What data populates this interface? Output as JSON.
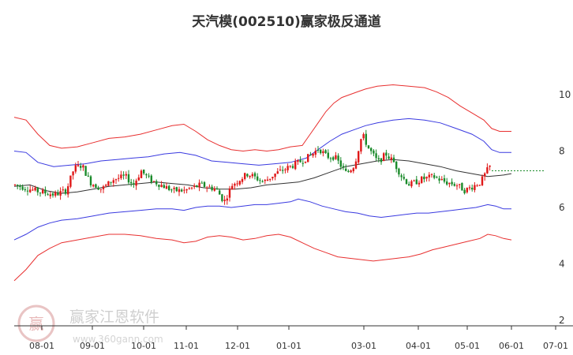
{
  "chart_data": {
    "type": "candlestick-with-channels",
    "title": "天汽模(002510)赢家极反通道",
    "x_ticks": [
      "08-01",
      "09-01",
      "10-01",
      "11-01",
      "12-01",
      "01-01",
      "03-01",
      "04-01",
      "05-01",
      "06-01",
      "07-01"
    ],
    "y_ticks": [
      2,
      4,
      6,
      8,
      10
    ],
    "ylim": [
      2,
      11
    ],
    "last_price": 7.3,
    "grid": false,
    "colors": {
      "up": "#e01818",
      "down": "#1a8a2a",
      "outer_band": "#e83030",
      "inner_band": "#3a3ae0",
      "middle": "#333333",
      "last_price_line": "#1a8a2a"
    },
    "outer_upper": [
      [
        0,
        9.2
      ],
      [
        15,
        9.1
      ],
      [
        30,
        8.6
      ],
      [
        45,
        8.2
      ],
      [
        60,
        8.1
      ],
      [
        80,
        8.15
      ],
      [
        100,
        8.3
      ],
      [
        120,
        8.45
      ],
      [
        140,
        8.5
      ],
      [
        160,
        8.6
      ],
      [
        180,
        8.75
      ],
      [
        200,
        8.9
      ],
      [
        215,
        8.95
      ],
      [
        230,
        8.7
      ],
      [
        245,
        8.4
      ],
      [
        260,
        8.2
      ],
      [
        275,
        8.05
      ],
      [
        290,
        8.0
      ],
      [
        305,
        8.05
      ],
      [
        320,
        8.0
      ],
      [
        335,
        8.05
      ],
      [
        350,
        8.15
      ],
      [
        365,
        8.2
      ],
      [
        375,
        8.6
      ],
      [
        385,
        9.0
      ],
      [
        395,
        9.4
      ],
      [
        405,
        9.7
      ],
      [
        415,
        9.9
      ],
      [
        425,
        10.0
      ],
      [
        435,
        10.1
      ],
      [
        445,
        10.2
      ],
      [
        460,
        10.3
      ],
      [
        480,
        10.35
      ],
      [
        500,
        10.3
      ],
      [
        520,
        10.25
      ],
      [
        535,
        10.1
      ],
      [
        550,
        9.9
      ],
      [
        565,
        9.6
      ],
      [
        580,
        9.35
      ],
      [
        595,
        9.1
      ],
      [
        605,
        8.8
      ],
      [
        615,
        8.7
      ],
      [
        630,
        8.7
      ]
    ],
    "inner_upper": [
      [
        0,
        8.0
      ],
      [
        15,
        7.95
      ],
      [
        30,
        7.6
      ],
      [
        50,
        7.45
      ],
      [
        70,
        7.5
      ],
      [
        90,
        7.55
      ],
      [
        110,
        7.65
      ],
      [
        130,
        7.7
      ],
      [
        150,
        7.75
      ],
      [
        170,
        7.8
      ],
      [
        190,
        7.9
      ],
      [
        210,
        7.95
      ],
      [
        230,
        7.85
      ],
      [
        250,
        7.65
      ],
      [
        270,
        7.6
      ],
      [
        290,
        7.55
      ],
      [
        310,
        7.5
      ],
      [
        330,
        7.55
      ],
      [
        350,
        7.6
      ],
      [
        370,
        7.75
      ],
      [
        385,
        8.05
      ],
      [
        400,
        8.35
      ],
      [
        415,
        8.6
      ],
      [
        430,
        8.75
      ],
      [
        445,
        8.9
      ],
      [
        460,
        9.0
      ],
      [
        480,
        9.1
      ],
      [
        500,
        9.15
      ],
      [
        520,
        9.1
      ],
      [
        540,
        9.0
      ],
      [
        560,
        8.8
      ],
      [
        580,
        8.6
      ],
      [
        595,
        8.35
      ],
      [
        605,
        8.05
      ],
      [
        615,
        7.95
      ],
      [
        630,
        7.95
      ]
    ],
    "middle_line": [
      [
        0,
        6.75
      ],
      [
        20,
        6.8
      ],
      [
        40,
        6.6
      ],
      [
        60,
        6.5
      ],
      [
        80,
        6.55
      ],
      [
        100,
        6.65
      ],
      [
        120,
        6.75
      ],
      [
        140,
        6.8
      ],
      [
        160,
        6.85
      ],
      [
        180,
        6.9
      ],
      [
        200,
        6.85
      ],
      [
        220,
        6.8
      ],
      [
        240,
        6.7
      ],
      [
        260,
        6.65
      ],
      [
        280,
        6.65
      ],
      [
        300,
        6.7
      ],
      [
        320,
        6.8
      ],
      [
        340,
        6.85
      ],
      [
        360,
        6.9
      ],
      [
        380,
        7.05
      ],
      [
        400,
        7.25
      ],
      [
        420,
        7.45
      ],
      [
        440,
        7.55
      ],
      [
        460,
        7.65
      ],
      [
        480,
        7.7
      ],
      [
        500,
        7.65
      ],
      [
        520,
        7.55
      ],
      [
        540,
        7.45
      ],
      [
        560,
        7.3
      ],
      [
        580,
        7.2
      ],
      [
        600,
        7.1
      ],
      [
        620,
        7.15
      ],
      [
        630,
        7.2
      ]
    ],
    "inner_lower": [
      [
        0,
        4.85
      ],
      [
        15,
        5.05
      ],
      [
        30,
        5.3
      ],
      [
        45,
        5.45
      ],
      [
        60,
        5.55
      ],
      [
        80,
        5.6
      ],
      [
        100,
        5.7
      ],
      [
        120,
        5.8
      ],
      [
        140,
        5.85
      ],
      [
        160,
        5.9
      ],
      [
        180,
        5.95
      ],
      [
        200,
        5.95
      ],
      [
        215,
        5.9
      ],
      [
        230,
        6.0
      ],
      [
        245,
        6.05
      ],
      [
        260,
        6.05
      ],
      [
        275,
        6.0
      ],
      [
        290,
        6.05
      ],
      [
        305,
        6.1
      ],
      [
        320,
        6.1
      ],
      [
        335,
        6.15
      ],
      [
        350,
        6.2
      ],
      [
        360,
        6.3
      ],
      [
        375,
        6.2
      ],
      [
        390,
        6.05
      ],
      [
        405,
        5.95
      ],
      [
        420,
        5.85
      ],
      [
        435,
        5.8
      ],
      [
        450,
        5.7
      ],
      [
        465,
        5.65
      ],
      [
        480,
        5.7
      ],
      [
        495,
        5.75
      ],
      [
        510,
        5.8
      ],
      [
        525,
        5.8
      ],
      [
        540,
        5.85
      ],
      [
        555,
        5.9
      ],
      [
        570,
        5.95
      ],
      [
        585,
        6.0
      ],
      [
        600,
        6.1
      ],
      [
        610,
        6.05
      ],
      [
        620,
        5.95
      ],
      [
        630,
        5.95
      ]
    ],
    "outer_lower": [
      [
        0,
        3.4
      ],
      [
        15,
        3.8
      ],
      [
        30,
        4.3
      ],
      [
        45,
        4.55
      ],
      [
        60,
        4.75
      ],
      [
        80,
        4.85
      ],
      [
        100,
        4.95
      ],
      [
        120,
        5.05
      ],
      [
        140,
        5.05
      ],
      [
        160,
        5.0
      ],
      [
        180,
        4.9
      ],
      [
        200,
        4.85
      ],
      [
        215,
        4.75
      ],
      [
        230,
        4.8
      ],
      [
        245,
        4.95
      ],
      [
        260,
        5.0
      ],
      [
        275,
        4.95
      ],
      [
        290,
        4.85
      ],
      [
        305,
        4.9
      ],
      [
        320,
        5.0
      ],
      [
        335,
        5.05
      ],
      [
        350,
        4.95
      ],
      [
        365,
        4.75
      ],
      [
        380,
        4.55
      ],
      [
        395,
        4.4
      ],
      [
        410,
        4.25
      ],
      [
        425,
        4.2
      ],
      [
        440,
        4.15
      ],
      [
        455,
        4.1
      ],
      [
        470,
        4.15
      ],
      [
        485,
        4.2
      ],
      [
        500,
        4.25
      ],
      [
        515,
        4.35
      ],
      [
        530,
        4.5
      ],
      [
        545,
        4.6
      ],
      [
        560,
        4.7
      ],
      [
        575,
        4.8
      ],
      [
        590,
        4.9
      ],
      [
        600,
        5.05
      ],
      [
        610,
        5.0
      ],
      [
        620,
        4.9
      ],
      [
        630,
        4.85
      ]
    ]
  },
  "watermark": {
    "seal_char": "赢",
    "brand_text": "赢家江恩软件",
    "url_text": "www.360gann.com"
  }
}
